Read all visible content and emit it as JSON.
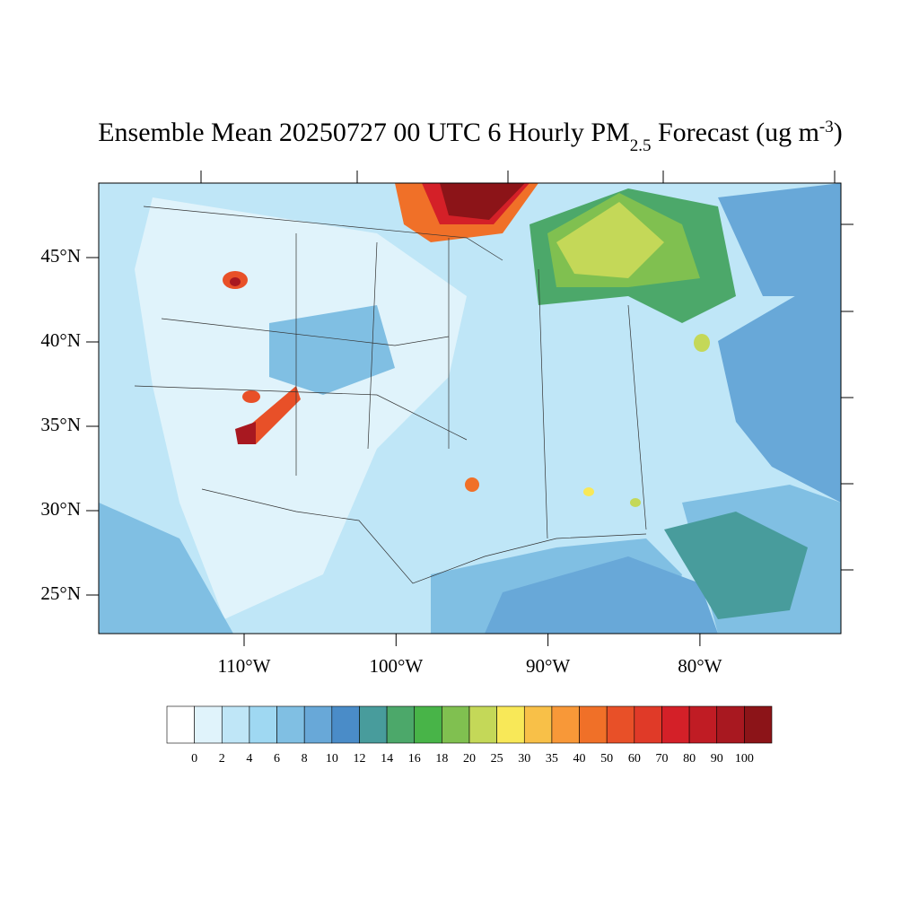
{
  "title": {
    "main": "Ensemble Mean 20250727 00 UTC 6 Hourly PM",
    "sub": "2.5",
    "rest": " Forecast (ug m",
    "sup": "-3",
    "end": ")"
  },
  "lat_labels": [
    {
      "value": 45,
      "label": "45°N"
    },
    {
      "value": 40,
      "label": "40°N"
    },
    {
      "value": 35,
      "label": "35°N"
    },
    {
      "value": 30,
      "label": "30°N"
    },
    {
      "value": 25,
      "label": "25°N"
    }
  ],
  "lon_labels": [
    {
      "value": -110,
      "label": "110°W"
    },
    {
      "value": -100,
      "label": "100°W"
    },
    {
      "value": -90,
      "label": "90°W"
    },
    {
      "value": -80,
      "label": "80°W"
    }
  ],
  "colorbar": {
    "levels": [
      0,
      2,
      4,
      6,
      8,
      10,
      12,
      14,
      16,
      18,
      20,
      25,
      30,
      35,
      40,
      50,
      60,
      70,
      80,
      90,
      100
    ],
    "colors": [
      "#ffffff",
      "#e0f3fb",
      "#bfe6f7",
      "#9fd8f2",
      "#80bfe3",
      "#68a8d8",
      "#4a8cc8",
      "#489c9c",
      "#4ca86a",
      "#48b448",
      "#80c050",
      "#c4d858",
      "#f8e858",
      "#f8c048",
      "#f89838",
      "#f07028",
      "#e85028",
      "#e03a28",
      "#d42028",
      "#c01c24",
      "#a81820",
      "#8c1418"
    ]
  }
}
